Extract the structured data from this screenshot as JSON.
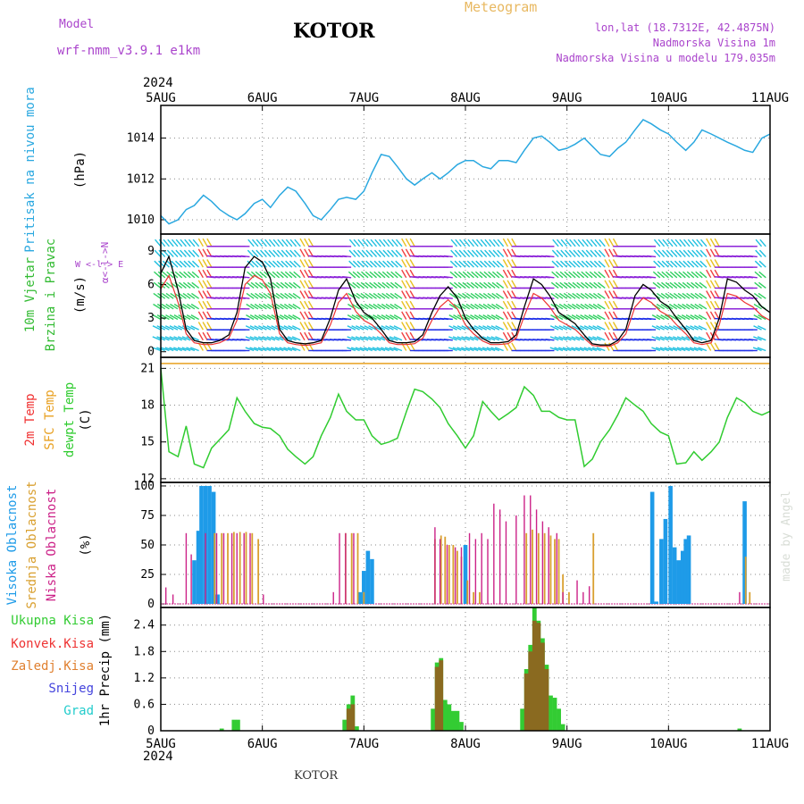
{
  "header": {
    "model_label": "Model",
    "model_name": "wrf-nmm_v3.9.1 e1km",
    "title": "KOTOR",
    "meteogram_label": "Meteogram",
    "lonlat": "lon,lat (18.7312E, 42.4875N)",
    "elev": "Nadmorska Visina 1m",
    "model_elev": "Nadmorska Visina u modelu 179.035m",
    "year": "2024",
    "footer_title": "KOTOR",
    "watermark": "made by Angel"
  },
  "colors": {
    "pressure": "#2aa8e0",
    "temp2m": "#f03030",
    "sfc": "#e8a020",
    "dewpt": "#30cc30",
    "cloud_high": "#1e9be8",
    "cloud_mid": "#d9a030",
    "cloud_low": "#cc2288",
    "precip_total": "#33cc33",
    "precip_conv": "#ee3333",
    "precip_grid": "#e08030",
    "precip_snow": "#4444dd",
    "precip_grad": "#22cccc",
    "wind_label": "#33bb33",
    "wind_dir": "#aa44cc"
  },
  "x_ticks": [
    "5AUG",
    "6AUG",
    "7AUG",
    "8AUG",
    "9AUG",
    "10AUG",
    "11AUG"
  ],
  "chart_data": [
    {
      "type": "line",
      "name": "pressure",
      "ylabel": "Pritisak na nivou mora",
      "unit": "(hPa)",
      "ylim": [
        1009.3,
        1015.6
      ],
      "yticks": [
        1010,
        1012,
        1014
      ],
      "x_days": [
        0,
        0.08,
        0.17,
        0.25,
        0.33,
        0.42,
        0.5,
        0.58,
        0.67,
        0.75,
        0.83,
        0.92,
        1.0,
        1.08,
        1.17,
        1.25,
        1.33,
        1.42,
        1.5,
        1.58,
        1.67,
        1.75,
        1.83,
        1.92,
        2.0,
        2.08,
        2.17,
        2.25,
        2.33,
        2.42,
        2.5,
        2.58,
        2.67,
        2.75,
        2.83,
        2.92,
        3.0,
        3.08,
        3.17,
        3.25,
        3.33,
        3.42,
        3.5,
        3.58,
        3.67,
        3.75,
        3.83,
        3.92,
        4.0,
        4.08,
        4.17,
        4.25,
        4.33,
        4.42,
        4.5,
        4.58,
        4.67,
        4.75,
        4.83,
        4.92,
        5.0,
        5.08,
        5.17,
        5.25,
        5.33,
        5.42,
        5.5,
        5.58,
        5.67,
        5.75,
        5.83,
        5.92,
        6.0
      ],
      "values": [
        1010.2,
        1009.8,
        1010.0,
        1010.5,
        1010.7,
        1011.2,
        1010.9,
        1010.5,
        1010.2,
        1010.0,
        1010.3,
        1010.8,
        1011.0,
        1010.6,
        1011.2,
        1011.6,
        1011.4,
        1010.8,
        1010.2,
        1010.0,
        1010.5,
        1011.0,
        1011.1,
        1011.0,
        1011.4,
        1012.3,
        1013.2,
        1013.1,
        1012.6,
        1012.0,
        1011.7,
        1012.0,
        1012.3,
        1012.0,
        1012.3,
        1012.7,
        1012.9,
        1012.9,
        1012.6,
        1012.5,
        1012.9,
        1012.9,
        1012.8,
        1013.4,
        1014.0,
        1014.1,
        1013.8,
        1013.4,
        1013.5,
        1013.7,
        1014.0,
        1013.6,
        1013.2,
        1013.1,
        1013.5,
        1013.8,
        1014.4,
        1014.9,
        1014.7,
        1014.4,
        1014.2,
        1013.8,
        1013.4,
        1013.8,
        1014.4,
        1014.2,
        1014.0,
        1013.8,
        1013.6,
        1013.4,
        1013.3,
        1014.0,
        1014.2
      ]
    },
    {
      "type": "line",
      "name": "wind",
      "ylabel": "10m Vjetar",
      "ylabel2": "Brzina i Pravac",
      "unit": "(m/s)",
      "dir_label": "W <-l-> E",
      "dir_label2": "α<-l->N",
      "ylim": [
        -0.5,
        10.5
      ],
      "yticks": [
        0,
        3,
        6,
        9
      ],
      "x_days": [
        0,
        0.08,
        0.17,
        0.25,
        0.33,
        0.42,
        0.5,
        0.58,
        0.67,
        0.75,
        0.83,
        0.92,
        1.0,
        1.08,
        1.17,
        1.25,
        1.33,
        1.42,
        1.5,
        1.58,
        1.67,
        1.75,
        1.83,
        1.92,
        2.0,
        2.08,
        2.17,
        2.25,
        2.33,
        2.42,
        2.5,
        2.58,
        2.67,
        2.75,
        2.83,
        2.92,
        3.0,
        3.08,
        3.17,
        3.25,
        3.33,
        3.42,
        3.5,
        3.58,
        3.67,
        3.75,
        3.83,
        3.92,
        4.0,
        4.08,
        4.17,
        4.25,
        4.33,
        4.42,
        4.5,
        4.58,
        4.67,
        4.75,
        4.83,
        4.92,
        5.0,
        5.08,
        5.17,
        5.25,
        5.33,
        5.42,
        5.5,
        5.58,
        5.67,
        5.75,
        5.83,
        5.92,
        6.0
      ],
      "values": [
        7.0,
        8.5,
        5.5,
        2.0,
        1.0,
        0.8,
        0.8,
        1.0,
        1.5,
        3.5,
        7.5,
        8.5,
        8.0,
        6.5,
        2.0,
        1.0,
        0.8,
        0.7,
        0.8,
        1.0,
        3.0,
        5.5,
        6.5,
        4.5,
        3.5,
        3.0,
        2.0,
        1.0,
        0.8,
        0.8,
        0.9,
        1.5,
        3.5,
        5.0,
        5.8,
        4.8,
        3.0,
        2.0,
        1.2,
        0.8,
        0.8,
        0.9,
        1.5,
        4.0,
        6.5,
        6.0,
        5.0,
        3.5,
        3.0,
        2.5,
        1.5,
        0.7,
        0.6,
        0.6,
        1.0,
        2.0,
        5.0,
        6.0,
        5.5,
        4.5,
        4.0,
        3.0,
        2.0,
        1.0,
        0.8,
        1.0,
        3.0,
        6.5,
        6.2,
        5.5,
        5.0,
        4.0,
        3.5
      ]
    },
    {
      "type": "line",
      "name": "temperature",
      "ylabel": "2m Temp",
      "ylabel2": "SFC Temp",
      "ylabel3": "dewpt Temp",
      "unit": "(C)",
      "ylim": [
        11.7,
        21.9
      ],
      "yticks": [
        12,
        15,
        18,
        21
      ],
      "sfc_value": 21.4,
      "x_days": [
        0,
        0.08,
        0.17,
        0.25,
        0.33,
        0.42,
        0.5,
        0.58,
        0.67,
        0.75,
        0.83,
        0.92,
        1.0,
        1.08,
        1.17,
        1.25,
        1.33,
        1.42,
        1.5,
        1.58,
        1.67,
        1.75,
        1.83,
        1.92,
        2.0,
        2.08,
        2.17,
        2.25,
        2.33,
        2.42,
        2.5,
        2.58,
        2.67,
        2.75,
        2.83,
        2.92,
        3.0,
        3.08,
        3.17,
        3.25,
        3.33,
        3.42,
        3.5,
        3.58,
        3.67,
        3.75,
        3.83,
        3.92,
        4.0,
        4.08,
        4.17,
        4.25,
        4.33,
        4.42,
        4.5,
        4.58,
        4.67,
        4.75,
        4.83,
        4.92,
        5.0,
        5.08,
        5.17,
        5.25,
        5.33,
        5.42,
        5.5,
        5.58,
        5.67,
        5.75,
        5.83,
        5.92,
        6.0
      ],
      "values": [
        21.0,
        14.2,
        13.8,
        16.3,
        13.2,
        12.9,
        14.5,
        15.2,
        16.0,
        18.6,
        17.5,
        16.5,
        16.2,
        16.1,
        15.5,
        14.4,
        13.8,
        13.2,
        13.8,
        15.5,
        17.0,
        18.9,
        17.5,
        16.8,
        16.8,
        15.5,
        14.8,
        15.0,
        15.3,
        17.5,
        19.3,
        19.1,
        18.5,
        17.8,
        16.5,
        15.5,
        14.5,
        15.5,
        18.3,
        17.5,
        16.8,
        17.3,
        17.8,
        19.5,
        18.8,
        17.5,
        17.5,
        17.0,
        16.8,
        16.8,
        13.0,
        13.6,
        15.0,
        16.0,
        17.2,
        18.6,
        18.0,
        17.5,
        16.5,
        15.8,
        15.5,
        13.2,
        13.3,
        14.2,
        13.5,
        14.2,
        15.0,
        17.0,
        18.6,
        18.2,
        17.5,
        17.2,
        17.5
      ]
    },
    {
      "type": "bar",
      "name": "clouds",
      "ylabel": "Visoka Oblacnost",
      "ylabel2": "Srednja Oblacnost",
      "ylabel3": "Niska Oblacnost",
      "unit": "(%)",
      "ylim": [
        -3,
        103
      ],
      "yticks": [
        0,
        25,
        50,
        75,
        100
      ],
      "high": [
        [
          0.33,
          37
        ],
        [
          0.37,
          62
        ],
        [
          0.4,
          100
        ],
        [
          0.44,
          100
        ],
        [
          0.48,
          100
        ],
        [
          0.52,
          95
        ],
        [
          0.56,
          8
        ],
        [
          1.96,
          10
        ],
        [
          2.0,
          28
        ],
        [
          2.04,
          45
        ],
        [
          2.08,
          38
        ],
        [
          4.88,
          2
        ],
        [
          4.93,
          55
        ],
        [
          4.97,
          72
        ],
        [
          5.02,
          100
        ],
        [
          5.06,
          48
        ],
        [
          5.1,
          37
        ],
        [
          5.14,
          45
        ],
        [
          5.17,
          55
        ],
        [
          5.2,
          58
        ],
        [
          4.84,
          95
        ],
        [
          5.75,
          87
        ],
        [
          3.0,
          50
        ]
      ],
      "mid": [
        [
          0.53,
          60
        ],
        [
          0.6,
          60
        ],
        [
          0.66,
          60
        ],
        [
          0.72,
          61
        ],
        [
          0.78,
          61
        ],
        [
          0.84,
          61
        ],
        [
          0.9,
          60
        ],
        [
          0.96,
          55
        ],
        [
          1.82,
          60
        ],
        [
          1.88,
          60
        ],
        [
          1.94,
          60
        ],
        [
          2.0,
          10
        ],
        [
          2.7,
          55
        ],
        [
          2.76,
          58
        ],
        [
          2.8,
          57
        ],
        [
          2.84,
          50
        ],
        [
          2.88,
          50
        ],
        [
          2.92,
          45
        ],
        [
          2.96,
          40
        ],
        [
          3.02,
          20
        ],
        [
          3.08,
          10
        ],
        [
          3.14,
          10
        ],
        [
          3.6,
          60
        ],
        [
          3.66,
          63
        ],
        [
          3.72,
          60
        ],
        [
          3.78,
          60
        ],
        [
          3.84,
          58
        ],
        [
          3.88,
          55
        ],
        [
          3.92,
          55
        ],
        [
          3.96,
          25
        ],
        [
          4.02,
          10
        ],
        [
          4.26,
          60
        ],
        [
          5.76,
          40
        ],
        [
          5.8,
          10
        ]
      ],
      "low": [
        [
          0.05,
          14
        ],
        [
          0.12,
          8
        ],
        [
          0.25,
          60
        ],
        [
          0.3,
          42
        ],
        [
          0.44,
          60
        ],
        [
          0.55,
          60
        ],
        [
          0.62,
          60
        ],
        [
          0.7,
          60
        ],
        [
          0.75,
          60
        ],
        [
          0.82,
          60
        ],
        [
          0.88,
          60
        ],
        [
          1.01,
          8
        ],
        [
          1.7,
          10
        ],
        [
          1.76,
          60
        ],
        [
          1.82,
          60
        ],
        [
          1.9,
          60
        ],
        [
          2.7,
          65
        ],
        [
          2.75,
          55
        ],
        [
          2.82,
          50
        ],
        [
          2.9,
          48
        ],
        [
          2.96,
          48
        ],
        [
          3.04,
          60
        ],
        [
          3.1,
          55
        ],
        [
          3.16,
          60
        ],
        [
          3.22,
          55
        ],
        [
          3.28,
          85
        ],
        [
          3.34,
          80
        ],
        [
          3.4,
          70
        ],
        [
          3.5,
          75
        ],
        [
          3.58,
          92
        ],
        [
          3.64,
          92
        ],
        [
          3.7,
          80
        ],
        [
          3.76,
          70
        ],
        [
          3.82,
          65
        ],
        [
          3.9,
          60
        ],
        [
          3.96,
          10
        ],
        [
          4.1,
          20
        ],
        [
          4.16,
          10
        ],
        [
          4.22,
          15
        ],
        [
          5.7,
          10
        ]
      ]
    },
    {
      "type": "bar",
      "name": "precip",
      "ylabel": "1hr Precip",
      "unit": "(mm)",
      "legend": [
        "Ukupna Kisa",
        "Konvek.Kisa",
        "Zaledj.Kisa",
        "Snijeg",
        "Grad"
      ],
      "ylim": [
        0,
        2.8
      ],
      "yticks": [
        0,
        0.6,
        1.2,
        1.8,
        2.4
      ],
      "total": [
        [
          0.6,
          0.05
        ],
        [
          0.72,
          0.25
        ],
        [
          0.76,
          0.25
        ],
        [
          1.81,
          0.25
        ],
        [
          1.85,
          0.6
        ],
        [
          1.89,
          0.8
        ],
        [
          1.93,
          0.1
        ],
        [
          2.68,
          0.5
        ],
        [
          2.72,
          1.55
        ],
        [
          2.76,
          1.65
        ],
        [
          2.8,
          0.7
        ],
        [
          2.84,
          0.6
        ],
        [
          2.88,
          0.45
        ],
        [
          2.92,
          0.45
        ],
        [
          2.96,
          0.2
        ],
        [
          3.56,
          0.5
        ],
        [
          3.6,
          1.4
        ],
        [
          3.64,
          1.95
        ],
        [
          3.68,
          2.8
        ],
        [
          3.72,
          2.5
        ],
        [
          3.76,
          2.1
        ],
        [
          3.8,
          1.5
        ],
        [
          3.84,
          0.8
        ],
        [
          3.88,
          0.75
        ],
        [
          3.92,
          0.5
        ],
        [
          3.96,
          0.15
        ],
        [
          5.7,
          0.05
        ]
      ],
      "conv": [
        [
          1.85,
          0.5
        ],
        [
          1.89,
          0.6
        ],
        [
          2.72,
          1.45
        ],
        [
          2.76,
          1.6
        ],
        [
          3.6,
          1.3
        ],
        [
          3.64,
          1.8
        ],
        [
          3.68,
          2.5
        ],
        [
          3.72,
          2.45
        ],
        [
          3.76,
          2.0
        ],
        [
          3.8,
          1.4
        ]
      ]
    }
  ]
}
